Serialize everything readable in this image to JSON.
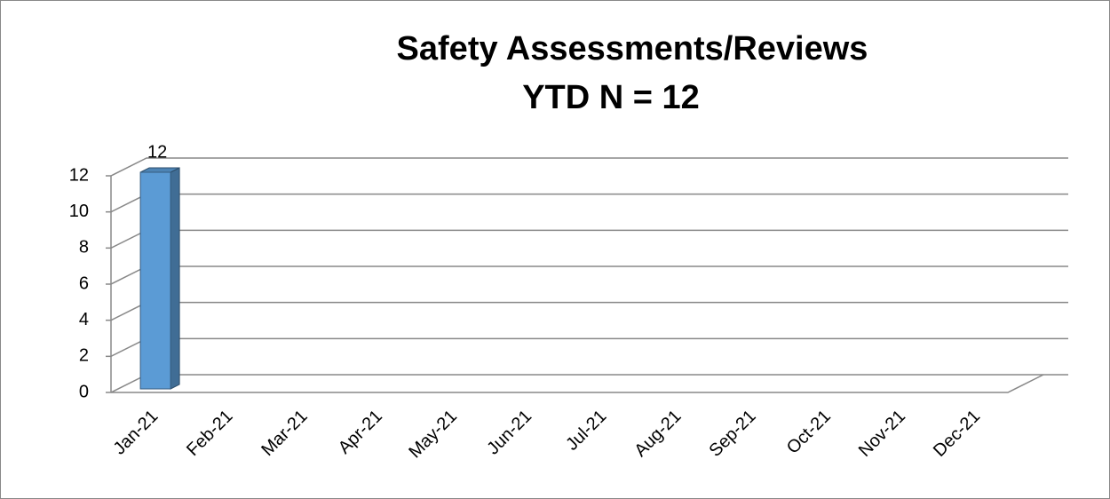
{
  "chart_data": {
    "type": "bar3d",
    "title": "Safety Assessments/Reviews",
    "subtitle": "YTD N = 12",
    "categories": [
      "Jan-21",
      "Feb-21",
      "Mar-21",
      "Apr-21",
      "May-21",
      "Jun-21",
      "Jul-21",
      "Aug-21",
      "Sep-21",
      "Oct-21",
      "Nov-21",
      "Dec-21"
    ],
    "values": [
      12,
      null,
      null,
      null,
      null,
      null,
      null,
      null,
      null,
      null,
      null,
      null
    ],
    "color": "#5b9bd5",
    "ylim": [
      0,
      12
    ],
    "yticks": [
      0,
      2,
      4,
      6,
      8,
      10,
      12
    ],
    "grid": true
  }
}
